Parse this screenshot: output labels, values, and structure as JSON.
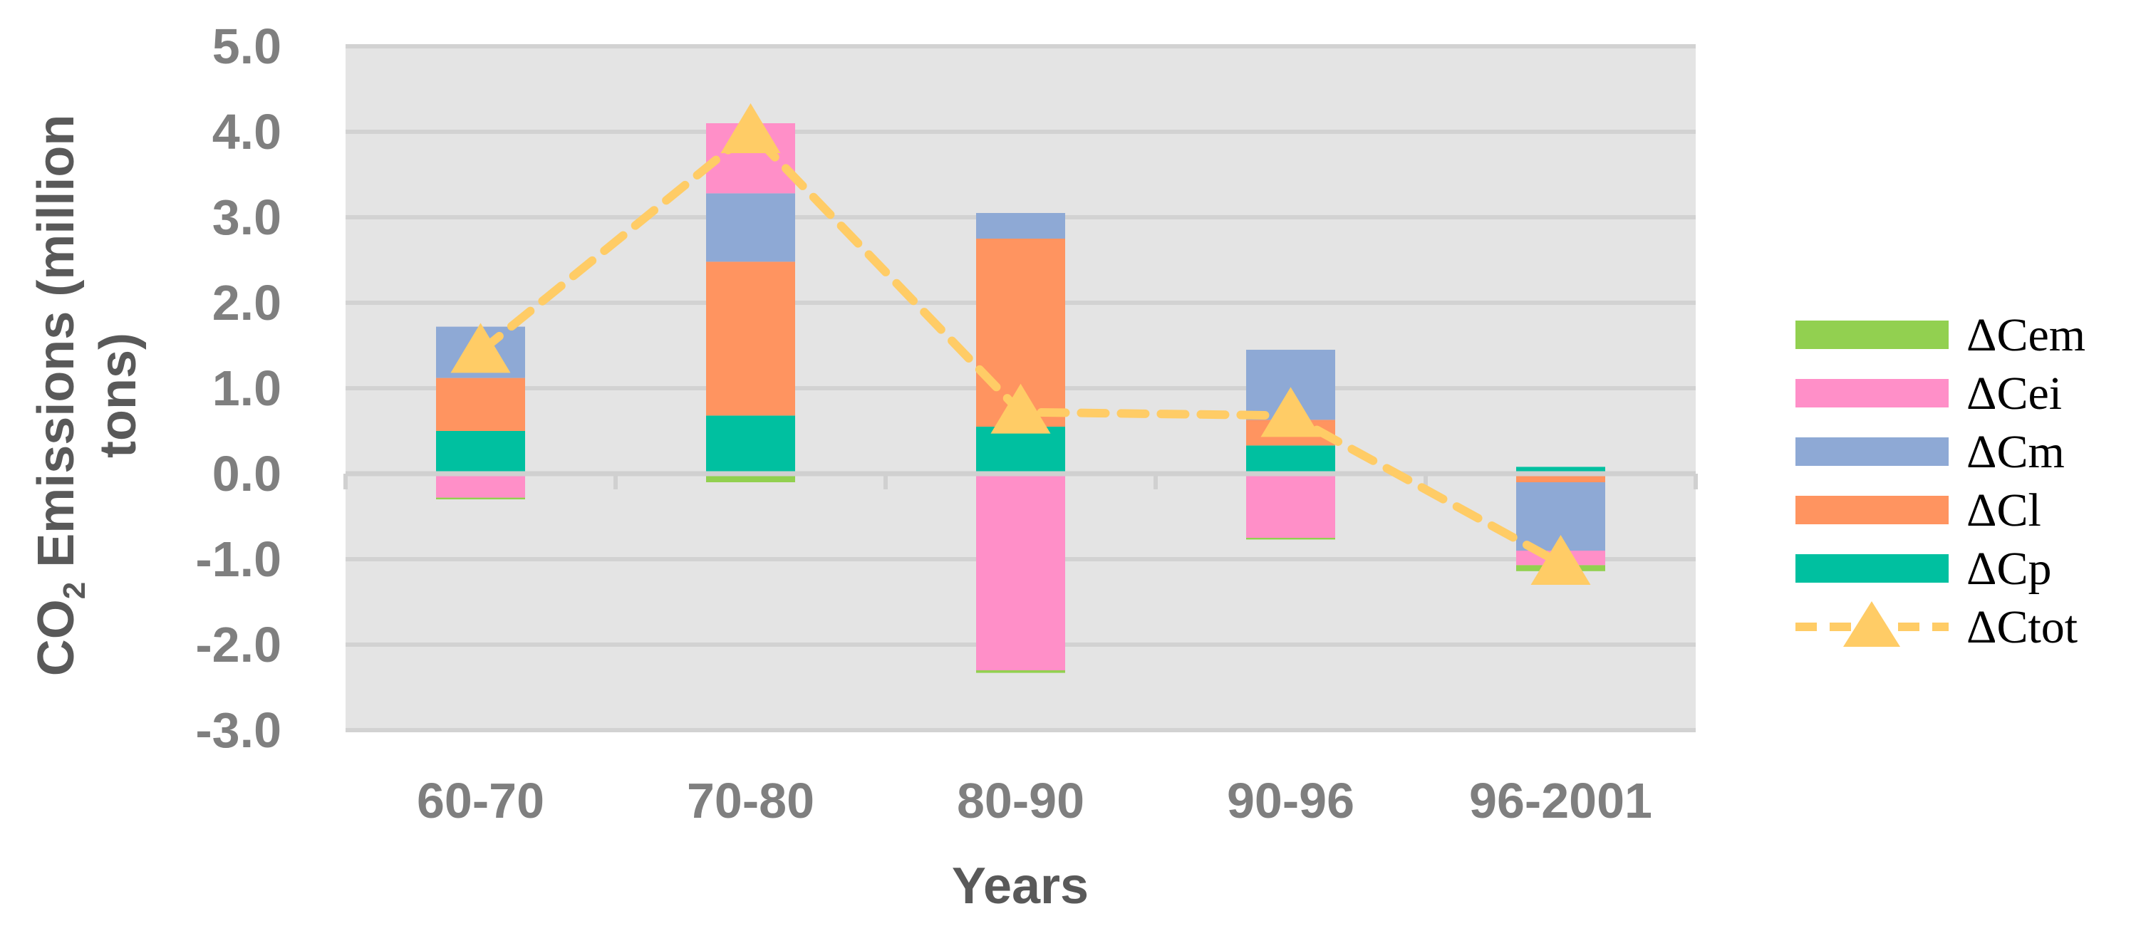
{
  "chart_data": {
    "type": "bar",
    "stacked": true,
    "categories": [
      "60-70",
      "70-80",
      "80-90",
      "90-96",
      "96-2001"
    ],
    "ylabel_main": "CO",
    "ylabel_sub": "2",
    "ylabel_rest": " Emissions (million",
    "ylabel_line2": "tons)",
    "xlabel": "Years",
    "ylim": [
      -3.0,
      5.0
    ],
    "yticks": [
      "5.0",
      "4.0",
      "3.0",
      "2.0",
      "1.0",
      "0.0",
      "-1.0",
      "-2.0",
      "-3.0"
    ],
    "ytick_values": [
      5,
      4,
      3,
      2,
      1,
      0,
      -1,
      -2,
      -3
    ],
    "grid": true,
    "legend_position": "right",
    "series": [
      {
        "name": "ΔCem",
        "color": "#92d050",
        "values": [
          -0.02,
          -0.1,
          -0.03,
          -0.02,
          -0.07
        ]
      },
      {
        "name": "ΔCei",
        "color": "#ff8fc8",
        "values": [
          -0.28,
          0.82,
          -2.3,
          -0.75,
          -0.17
        ]
      },
      {
        "name": "ΔCm",
        "color": "#8ea9d5",
        "values": [
          0.6,
          0.8,
          0.3,
          0.82,
          -0.8
        ]
      },
      {
        "name": "ΔCl",
        "color": "#ff9460",
        "values": [
          0.62,
          1.8,
          2.2,
          0.3,
          -0.1
        ]
      },
      {
        "name": "ΔCp",
        "color": "#00c0a0",
        "values": [
          0.5,
          0.68,
          0.55,
          0.33,
          0.08
        ]
      }
    ],
    "line_series": {
      "name": "ΔCtot",
      "color": "#ffcc66",
      "values": [
        1.43,
        4.0,
        0.72,
        0.68,
        -1.05
      ]
    }
  }
}
